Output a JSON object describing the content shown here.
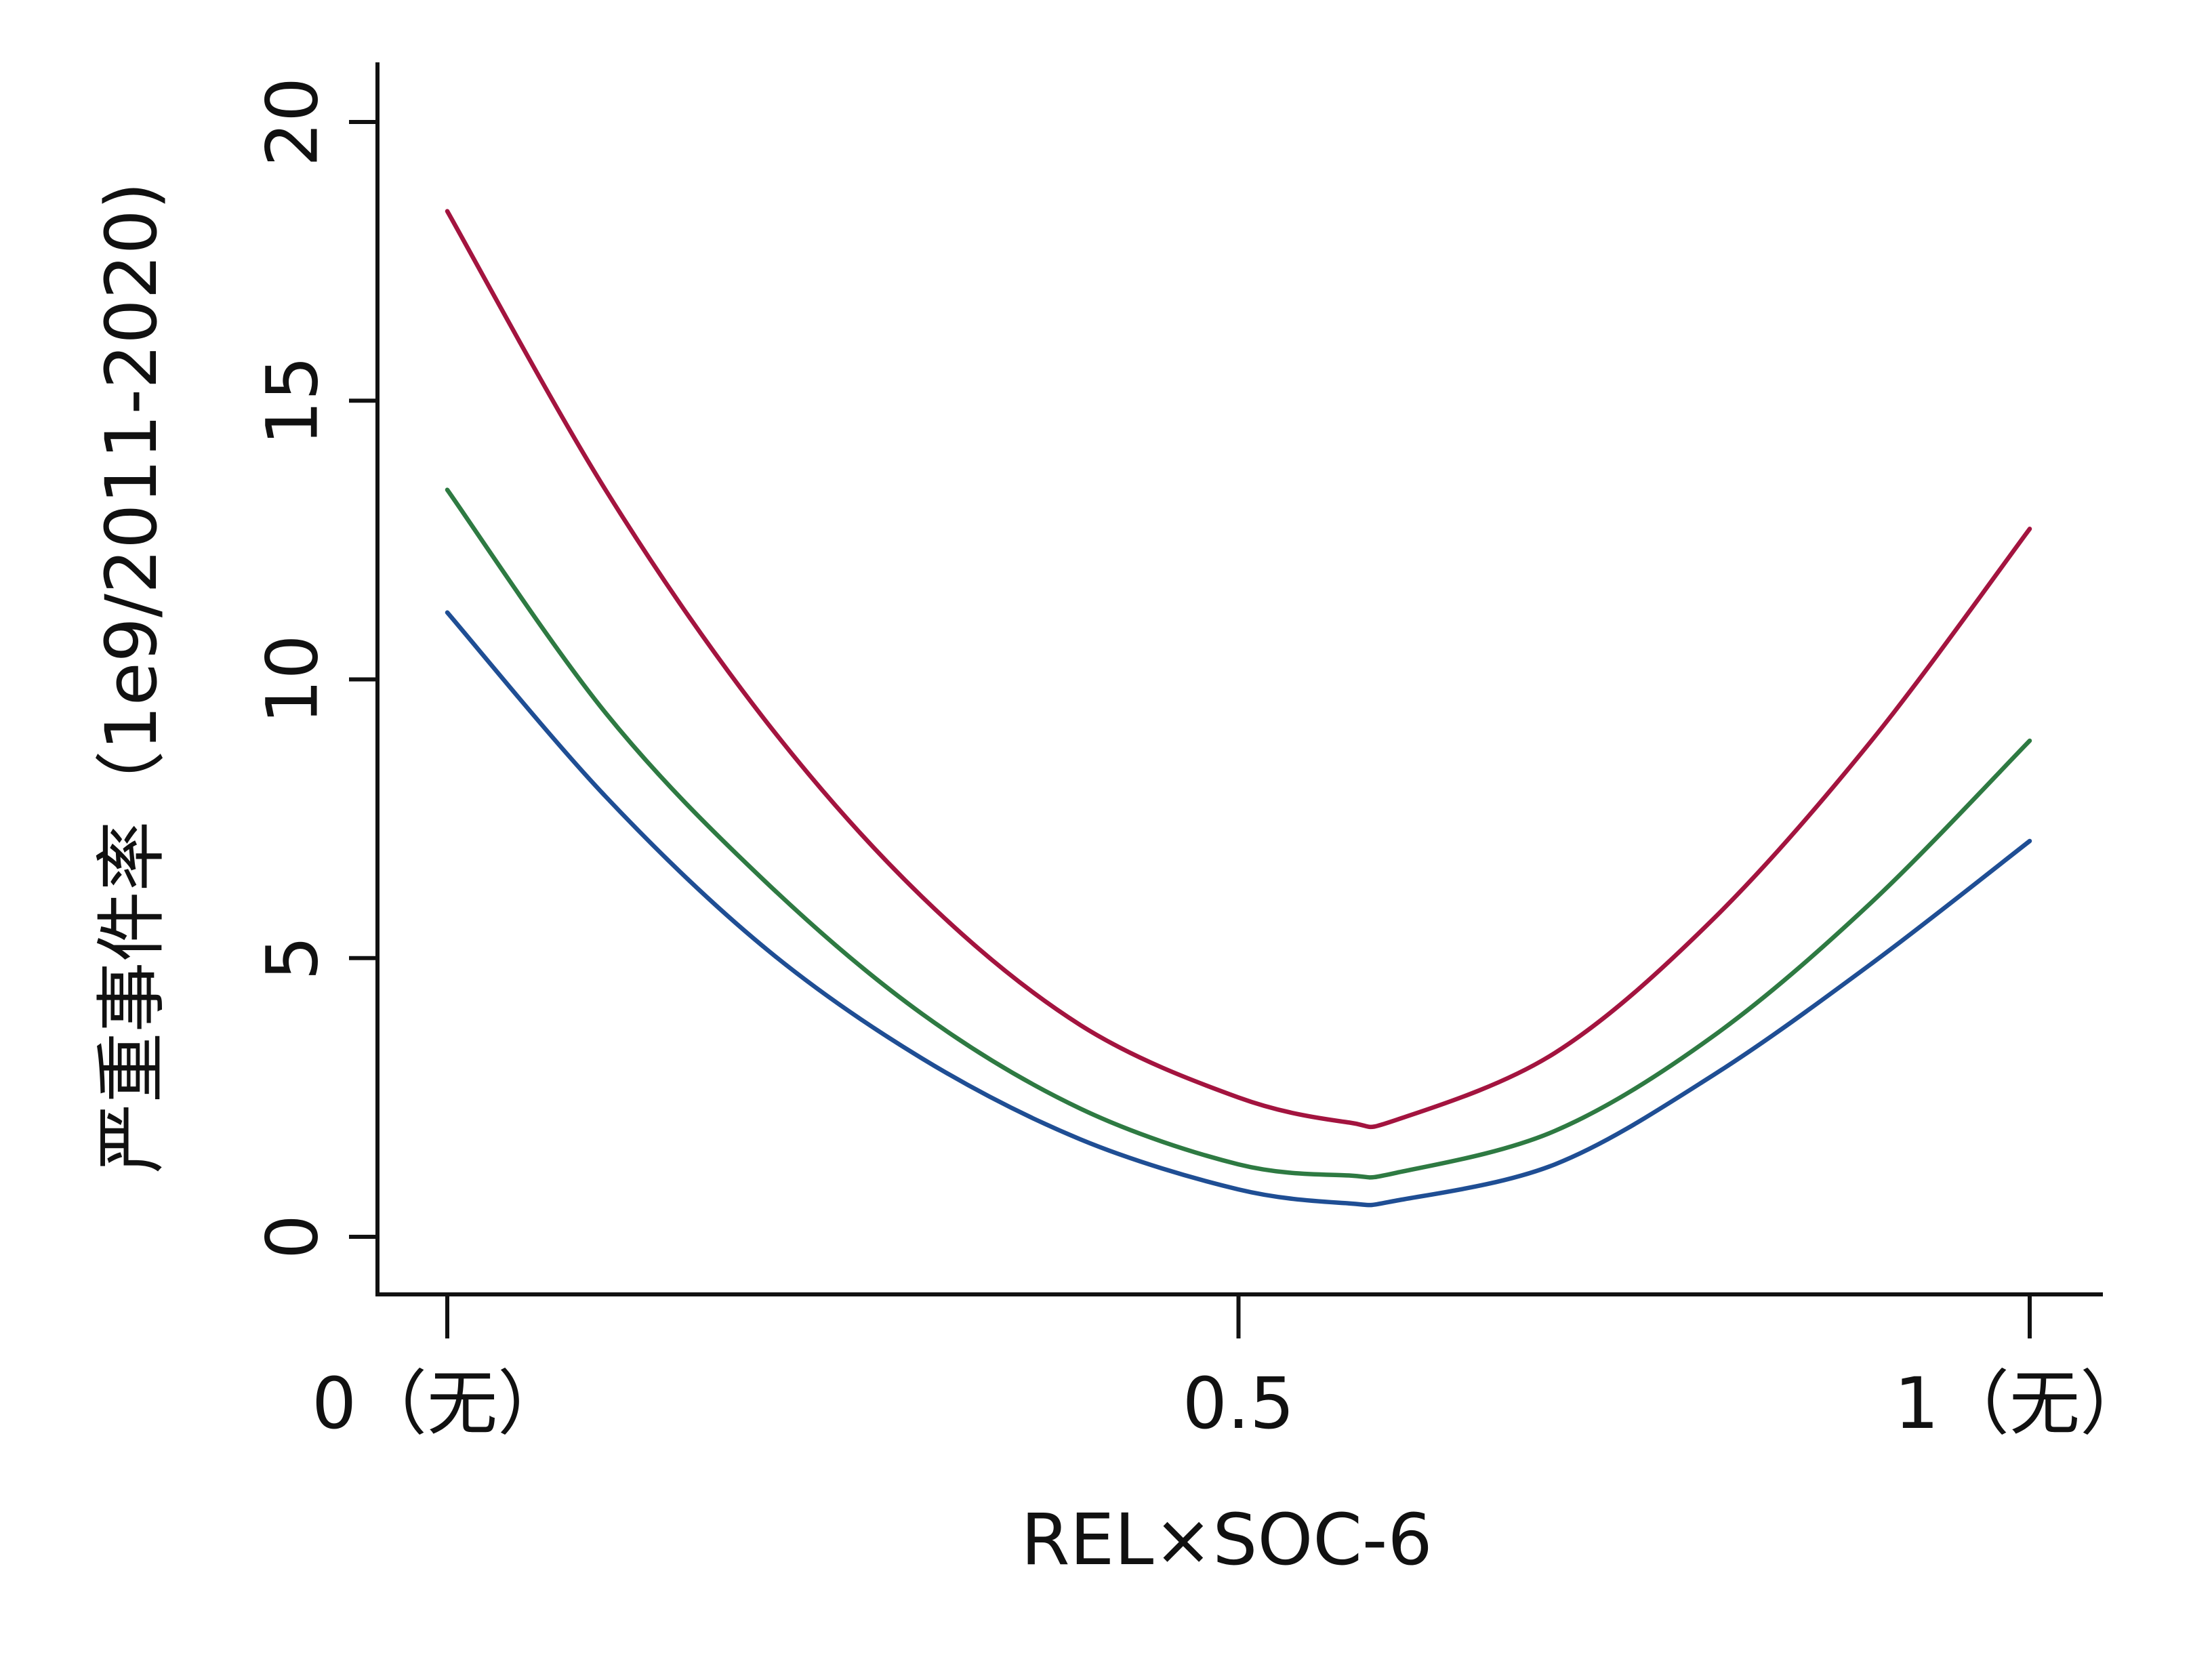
{
  "chart_data": {
    "type": "line",
    "title": "",
    "xlabel": "REL×SOC-6",
    "ylabel": "严重事件率（1e9/2011-2020)",
    "xlim": [
      0,
      1
    ],
    "ylim": [
      0,
      20
    ],
    "x_ticks": [
      {
        "value": 0,
        "label": "0（无）"
      },
      {
        "value": 0.5,
        "label": "0.5"
      },
      {
        "value": 1,
        "label": "1（无）"
      }
    ],
    "y_ticks": [
      {
        "value": 0,
        "label": "0"
      },
      {
        "value": 5,
        "label": "5"
      },
      {
        "value": 10,
        "label": "10"
      },
      {
        "value": 15,
        "label": "15"
      },
      {
        "value": 20,
        "label": "20"
      }
    ],
    "grid": false,
    "legend": "none",
    "x": [
      0,
      0.1,
      0.2,
      0.3,
      0.4,
      0.5,
      0.57,
      0.6,
      0.7,
      0.8,
      0.9,
      1.0
    ],
    "series": [
      {
        "color": "#a3143f",
        "values": [
          18.4,
          13.4,
          9.3,
          6.1,
          3.8,
          2.5,
          2.05,
          2.1,
          3.3,
          5.7,
          8.9,
          12.7
        ]
      },
      {
        "color": "#2e7a42",
        "values": [
          13.4,
          9.4,
          6.4,
          4.0,
          2.3,
          1.3,
          1.1,
          1.15,
          1.9,
          3.6,
          6.0,
          8.9
        ]
      },
      {
        "color": "#1f4e94",
        "values": [
          11.2,
          7.9,
          5.2,
          3.2,
          1.75,
          0.85,
          0.6,
          0.65,
          1.3,
          2.9,
          4.9,
          7.1
        ]
      }
    ]
  }
}
